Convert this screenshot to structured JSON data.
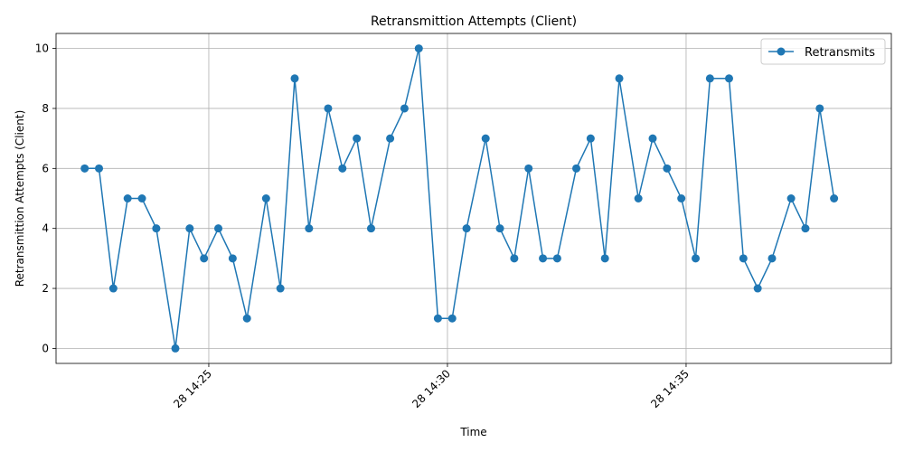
{
  "chart_data": {
    "type": "line",
    "title": "Retransmittion Attempts (Client)",
    "xlabel": "Time",
    "ylabel": "Retransmittion Attempts (Client)",
    "x_tick_labels": [
      "28 14:25",
      "28 14:30",
      "28 14:35"
    ],
    "x_ticks_minutes": [
      25,
      30,
      35
    ],
    "x_range_minutes": [
      21.8,
      39.3
    ],
    "ylim": [
      -0.5,
      10.5
    ],
    "y_ticks": [
      0,
      2,
      4,
      6,
      8,
      10
    ],
    "grid": true,
    "legend": "top-right",
    "color": "#1f77b4",
    "series": [
      {
        "name": "Retransmits",
        "x_minutes": [
          22.4,
          22.7,
          23.0,
          23.3,
          23.6,
          23.9,
          24.3,
          24.6,
          24.9,
          25.2,
          25.5,
          25.8,
          26.2,
          26.5,
          26.8,
          27.1,
          27.5,
          27.8,
          28.1,
          28.4,
          28.8,
          29.1,
          29.4,
          29.8,
          30.1,
          30.4,
          30.8,
          31.1,
          31.4,
          31.7,
          32.0,
          32.3,
          32.7,
          33.0,
          33.3,
          33.6,
          34.0,
          34.3,
          34.6,
          34.9,
          35.2,
          35.5,
          35.9,
          36.2,
          36.5,
          36.8,
          37.2,
          37.5,
          37.8,
          38.1
        ],
        "values": [
          6,
          6,
          2,
          5,
          5,
          4,
          0,
          4,
          3,
          4,
          3,
          1,
          5,
          2,
          9,
          4,
          8,
          6,
          7,
          4,
          7,
          8,
          10,
          1,
          1,
          4,
          7,
          4,
          3,
          6,
          3,
          3,
          6,
          7,
          3,
          9,
          5,
          7,
          6,
          5,
          3,
          9,
          9,
          3,
          2,
          3,
          5,
          4,
          8,
          5
        ]
      }
    ]
  }
}
